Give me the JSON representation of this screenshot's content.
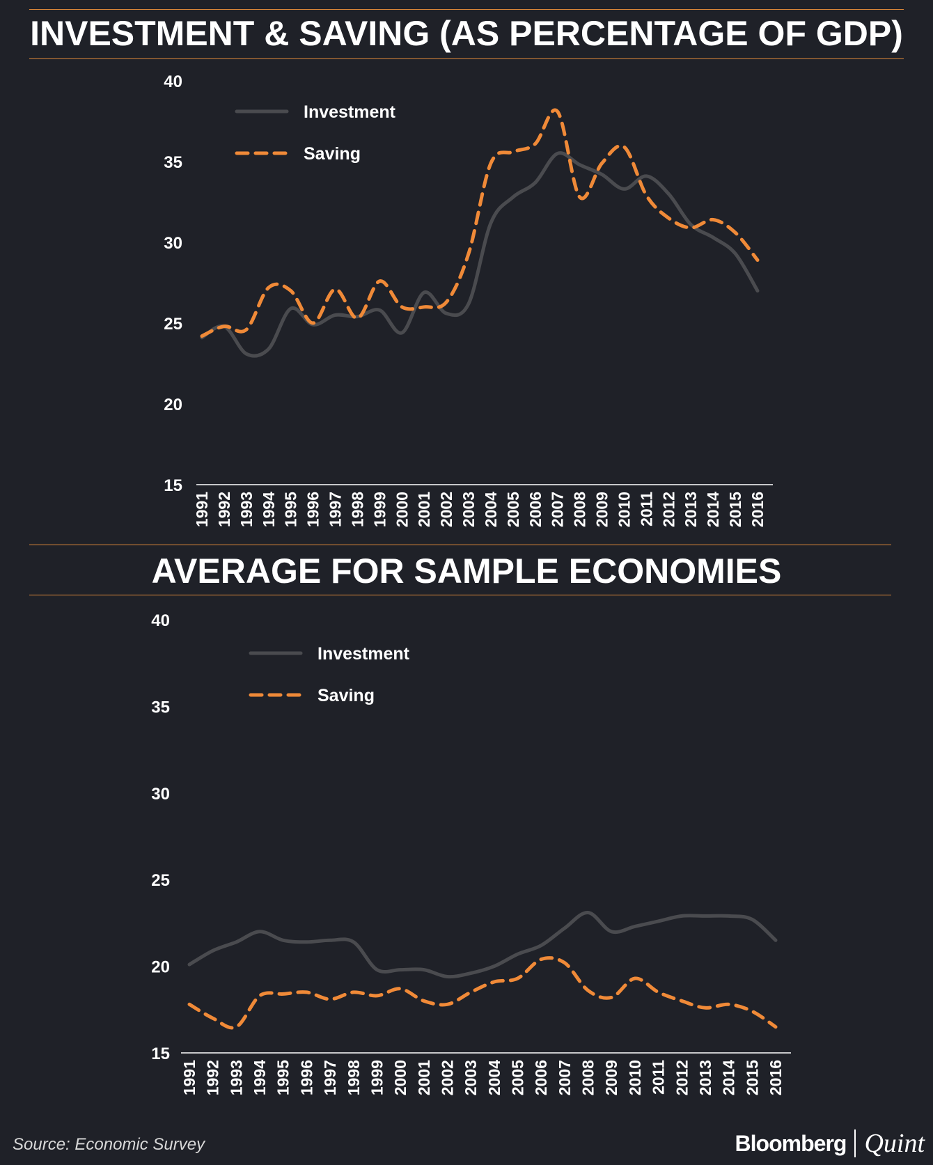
{
  "source": "Source: Economic Survey",
  "brand": {
    "name": "Bloomberg",
    "sub": "Quint"
  },
  "colors": {
    "background": "#1f2128",
    "investment": "#4a4b4f",
    "saving": "#f08a38",
    "rule": "#e08a3a",
    "text": "#ffffff"
  },
  "chart_data": [
    {
      "type": "line",
      "title": "INVESTMENT & SAVING (AS PERCENTAGE OF GDP)",
      "xlabel": "",
      "ylabel": "",
      "ylim": [
        15,
        40
      ],
      "yticks": [
        "40",
        "35",
        "30",
        "25",
        "20",
        "15"
      ],
      "categories": [
        "1991",
        "1992",
        "1993",
        "1994",
        "1995",
        "1996",
        "1997",
        "1998",
        "1999",
        "2000",
        "2001",
        "2002",
        "2003",
        "2004",
        "2005",
        "2006",
        "2007",
        "2008",
        "2009",
        "2010",
        "2011",
        "2012",
        "2013",
        "2014",
        "2015",
        "2016"
      ],
      "legend": {
        "position": "top-left"
      },
      "series": [
        {
          "name": "Investment",
          "style": "solid",
          "values": [
            24.1,
            24.8,
            23.1,
            23.4,
            25.9,
            24.9,
            25.5,
            25.4,
            25.8,
            24.4,
            26.9,
            25.6,
            26.2,
            31.2,
            32.8,
            33.7,
            35.5,
            34.8,
            34.2,
            33.3,
            34.1,
            33.0,
            31.1,
            30.3,
            29.3,
            27.0
          ]
        },
        {
          "name": "Saving",
          "style": "dashed",
          "values": [
            24.2,
            24.8,
            24.6,
            27.2,
            27.0,
            25.0,
            27.1,
            25.3,
            27.6,
            26.0,
            26.0,
            26.3,
            29.3,
            34.9,
            35.6,
            36.1,
            38.1,
            32.8,
            34.9,
            35.9,
            32.9,
            31.5,
            30.9,
            31.4,
            30.6,
            28.9
          ]
        }
      ]
    },
    {
      "type": "line",
      "title": "AVERAGE FOR SAMPLE ECONOMIES",
      "xlabel": "",
      "ylabel": "",
      "ylim": [
        15,
        40
      ],
      "yticks": [
        "40",
        "35",
        "30",
        "25",
        "20",
        "15"
      ],
      "categories": [
        "1991",
        "1992",
        "1993",
        "1994",
        "1995",
        "1996",
        "1997",
        "1998",
        "1999",
        "2000",
        "2001",
        "2002",
        "2003",
        "2004",
        "2005",
        "2006",
        "2007",
        "2008",
        "2009",
        "2010",
        "2011",
        "2012",
        "2013",
        "2014",
        "2015",
        "2016"
      ],
      "legend": {
        "position": "top-left"
      },
      "series": [
        {
          "name": "Investment",
          "style": "solid",
          "values": [
            20.1,
            20.9,
            21.4,
            22.0,
            21.5,
            21.4,
            21.5,
            21.4,
            19.8,
            19.8,
            19.8,
            19.4,
            19.6,
            20.0,
            20.7,
            21.2,
            22.2,
            23.1,
            22.0,
            22.3,
            22.6,
            22.9,
            22.9,
            22.9,
            22.7,
            21.5
          ]
        },
        {
          "name": "Saving",
          "style": "dashed",
          "values": [
            17.8,
            17.0,
            16.5,
            18.3,
            18.4,
            18.5,
            18.1,
            18.5,
            18.3,
            18.7,
            18.0,
            17.8,
            18.5,
            19.1,
            19.3,
            20.4,
            20.2,
            18.6,
            18.2,
            19.3,
            18.5,
            18.0,
            17.6,
            17.8,
            17.4,
            16.5
          ]
        }
      ]
    }
  ]
}
